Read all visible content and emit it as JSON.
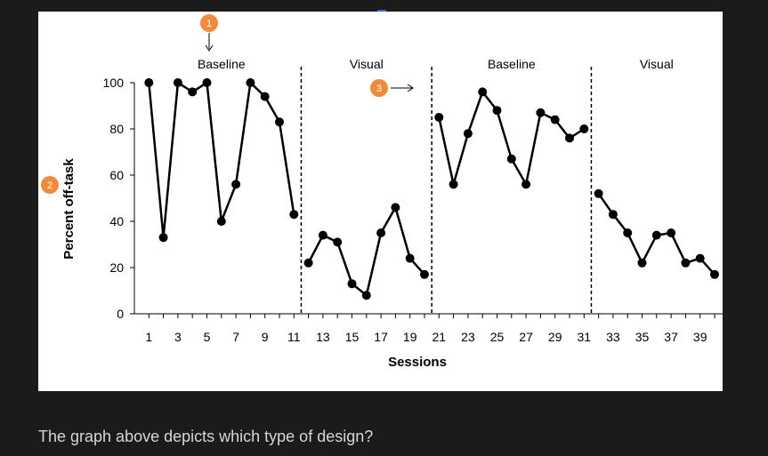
{
  "chart_data": {
    "type": "line",
    "title": "",
    "xlabel": "Sessions",
    "ylabel": "Percent off-task",
    "ylim": [
      0,
      100
    ],
    "xlim": [
      0,
      40
    ],
    "yticks": [
      0,
      20,
      40,
      60,
      80,
      100
    ],
    "xtick_labels": [
      "1",
      "3",
      "5",
      "7",
      "9",
      "11",
      "13",
      "15",
      "17",
      "19",
      "21",
      "23",
      "25",
      "27",
      "29",
      "31",
      "33",
      "35",
      "37",
      "39"
    ],
    "phases": [
      "Baseline",
      "Visual",
      "Baseline",
      "Visual"
    ],
    "phase_change_lines": [
      11.5,
      20.5,
      31.5
    ],
    "series": [
      {
        "name": "Baseline 1",
        "x": [
          1,
          2,
          3,
          4,
          5,
          6,
          7,
          8,
          9,
          10,
          11
        ],
        "values": [
          100,
          33,
          100,
          96,
          100,
          40,
          56,
          100,
          94,
          83,
          43
        ]
      },
      {
        "name": "Visual 1",
        "x": [
          12,
          13,
          14,
          15,
          16,
          17,
          18,
          19,
          20
        ],
        "values": [
          22,
          34,
          31,
          13,
          8,
          35,
          46,
          24,
          17
        ]
      },
      {
        "name": "Baseline 2",
        "x": [
          21,
          22,
          23,
          24,
          25,
          26,
          27,
          28,
          29,
          30,
          31
        ],
        "values": [
          85,
          56,
          78,
          96,
          88,
          67,
          56,
          87,
          84,
          76,
          80
        ]
      },
      {
        "name": "Visual 2",
        "x": [
          32,
          33,
          34,
          35,
          36,
          37,
          38,
          39,
          40
        ],
        "values": [
          52,
          43,
          35,
          22,
          34,
          35,
          22,
          24,
          17
        ]
      }
    ],
    "annotations": [
      "1",
      "2",
      "3"
    ],
    "annotation_color": "#f08a3c"
  },
  "question": "The graph above depicts which type of design?"
}
